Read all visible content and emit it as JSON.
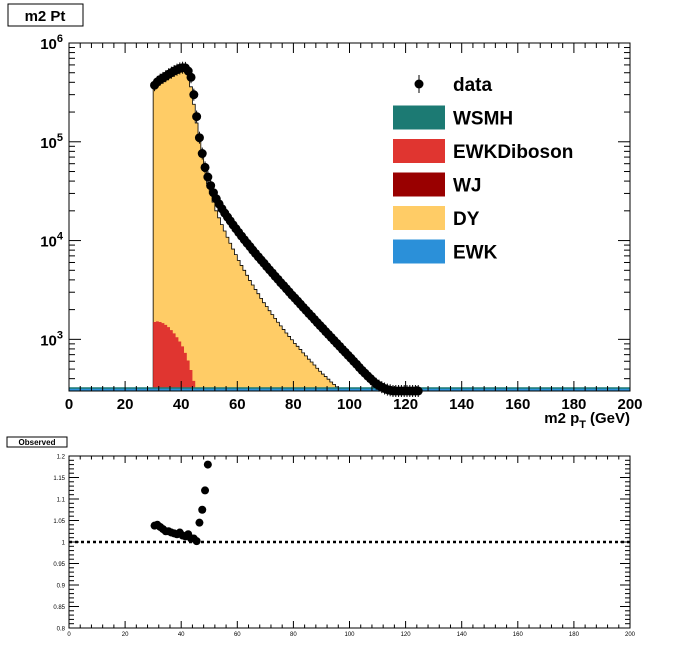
{
  "canvas": {
    "title": "m2 Pt",
    "bottom_title": "Observed"
  },
  "colors": {
    "data": "#000000",
    "WSMH": "#1c7a73",
    "EWKDiboson": "#e03530",
    "WJ": "#990000",
    "DY": "#ffcc66",
    "EWK": "#2b90d9",
    "frame": "#000000",
    "ratio_line": "#000000"
  },
  "chart_data": [
    {
      "type": "histogram",
      "title": "m2 Pt",
      "xlabel_main": "m2 p",
      "xlabel_sub": "T",
      "xlabel_unit": "(GeV)",
      "xlim": [
        0,
        200
      ],
      "ylim": [
        300,
        1000000
      ],
      "yscale": "log",
      "grid": false,
      "legend_position": "top-right",
      "x_ticks": [
        "0",
        "20",
        "40",
        "60",
        "80",
        "100",
        "120",
        "140",
        "160",
        "180",
        "200"
      ],
      "y_ticks": [
        {
          "base": "10",
          "exp": "3",
          "value": 1000
        },
        {
          "base": "10",
          "exp": "4",
          "value": 10000
        },
        {
          "base": "10",
          "exp": "5",
          "value": 100000
        },
        {
          "base": "10",
          "exp": "6",
          "value": 1000000
        }
      ],
      "legend": [
        {
          "name": "data",
          "style": "marker"
        },
        {
          "name": "WSMH",
          "style": "fill"
        },
        {
          "name": "EWKDiboson",
          "style": "fill"
        },
        {
          "name": "WJ",
          "style": "fill"
        },
        {
          "name": "DY",
          "style": "fill"
        },
        {
          "name": "EWK",
          "style": "fill"
        }
      ],
      "bin_width": 1,
      "dy_stack": {
        "x_start": 30,
        "values": [
          360000,
          390000,
          410000,
          430000,
          450000,
          470000,
          490000,
          510000,
          525000,
          540000,
          545000,
          540000,
          480000,
          360000,
          240000,
          155000,
          100000,
          70000,
          50000,
          38000,
          30000,
          24500,
          20000,
          17000,
          14500,
          12500,
          10800,
          9400,
          8200,
          7200,
          6300,
          5600,
          5000,
          4450,
          3950,
          3550,
          3200,
          2900,
          2600,
          2350,
          2150,
          1950,
          1780,
          1630,
          1490,
          1370,
          1260,
          1160,
          1070,
          990,
          910,
          850,
          790,
          730,
          680,
          630,
          590,
          550,
          510,
          475,
          445,
          420,
          395,
          370,
          350,
          330,
          315,
          300,
          300,
          300,
          300
        ]
      },
      "ewkdiboson": {
        "x_start": 30,
        "values": [
          1500,
          1520,
          1500,
          1460,
          1400,
          1330,
          1240,
          1150,
          1050,
          950,
          850,
          730,
          610,
          490,
          380,
          300
        ]
      },
      "ewk_line_value": 300,
      "data": {
        "x": [
          30.5,
          31.5,
          32.5,
          33.5,
          34.5,
          35.5,
          36.5,
          37.5,
          38.5,
          39.5,
          40.5,
          41.5,
          42.5,
          43.5,
          44.5,
          45.5,
          46.5,
          47.5,
          48.5,
          49.5,
          50.5,
          51.5,
          52.5,
          53.5,
          54.5,
          55.5,
          56.5,
          57.5,
          58.5,
          59.5,
          60.5,
          61.5,
          62.5,
          63.5,
          64.5,
          65.5,
          66.5,
          67.5,
          68.5,
          69.5,
          70.5,
          71.5,
          72.5,
          73.5,
          74.5,
          75.5,
          76.5,
          77.5,
          78.5,
          79.5,
          80.5,
          81.5,
          82.5,
          83.5,
          84.5,
          85.5,
          86.5,
          87.5,
          88.5,
          89.5,
          90.5,
          91.5,
          92.5,
          93.5,
          94.5,
          95.5,
          96.5,
          97.5,
          98.5,
          99.5,
          100.5,
          101.5,
          102.5,
          103.5,
          104.5,
          105.5,
          106.5,
          107.5,
          108.5,
          109.5,
          110.5,
          111.5,
          112.5,
          113.5,
          114.5,
          115.5,
          116.5,
          117.5,
          118.5,
          119.5,
          120.5,
          121.5,
          122.5,
          123.5,
          124.5
        ],
        "y": [
          374000,
          404000,
          426000,
          443000,
          461000,
          482000,
          501000,
          521000,
          537000,
          553000,
          562000,
          560000,
          520000,
          450000,
          300000,
          180000,
          110000,
          76000,
          55000,
          44000,
          36000,
          30500,
          26500,
          23500,
          21000,
          19000,
          17300,
          15800,
          14400,
          13200,
          12100,
          11100,
          10200,
          9400,
          8700,
          8000,
          7400,
          6850,
          6350,
          5900,
          5450,
          5050,
          4700,
          4350,
          4050,
          3750,
          3500,
          3250,
          3020,
          2800,
          2620,
          2440,
          2270,
          2110,
          1970,
          1830,
          1710,
          1590,
          1480,
          1380,
          1290,
          1200,
          1120,
          1045,
          975,
          910,
          850,
          790,
          740,
          690,
          645,
          600,
          560,
          520,
          485,
          455,
          425,
          400,
          375,
          355,
          340,
          328,
          318,
          310,
          305,
          300,
          300,
          300,
          300,
          300,
          300,
          300,
          300,
          300,
          300
        ]
      }
    },
    {
      "type": "scatter",
      "title": "Observed",
      "xlim": [
        0,
        200
      ],
      "ylim": [
        0.8,
        1.2
      ],
      "grid": false,
      "x_ticks": [
        "0",
        "20",
        "40",
        "60",
        "80",
        "100",
        "120",
        "140",
        "160",
        "180",
        "200"
      ],
      "y_ticks": [
        "0.8",
        "0.85",
        "0.9",
        "0.95",
        "1",
        "1.05",
        "1.1",
        "1.15",
        "1.2"
      ],
      "reference_line": 1.0,
      "x": [
        30.5,
        31.5,
        32.5,
        33.5,
        34.5,
        35.5,
        36.5,
        37.5,
        38.5,
        39.5,
        40.5,
        41.5,
        42.5,
        43.5,
        44.5,
        45.5,
        46.5,
        47.5,
        48.5,
        49.5
      ],
      "y": [
        1.038,
        1.04,
        1.035,
        1.03,
        1.025,
        1.025,
        1.022,
        1.02,
        1.018,
        1.022,
        1.015,
        1.013,
        1.018,
        1.008,
        1.008,
        1.002,
        1.045,
        1.075,
        1.12,
        1.18
      ]
    }
  ]
}
